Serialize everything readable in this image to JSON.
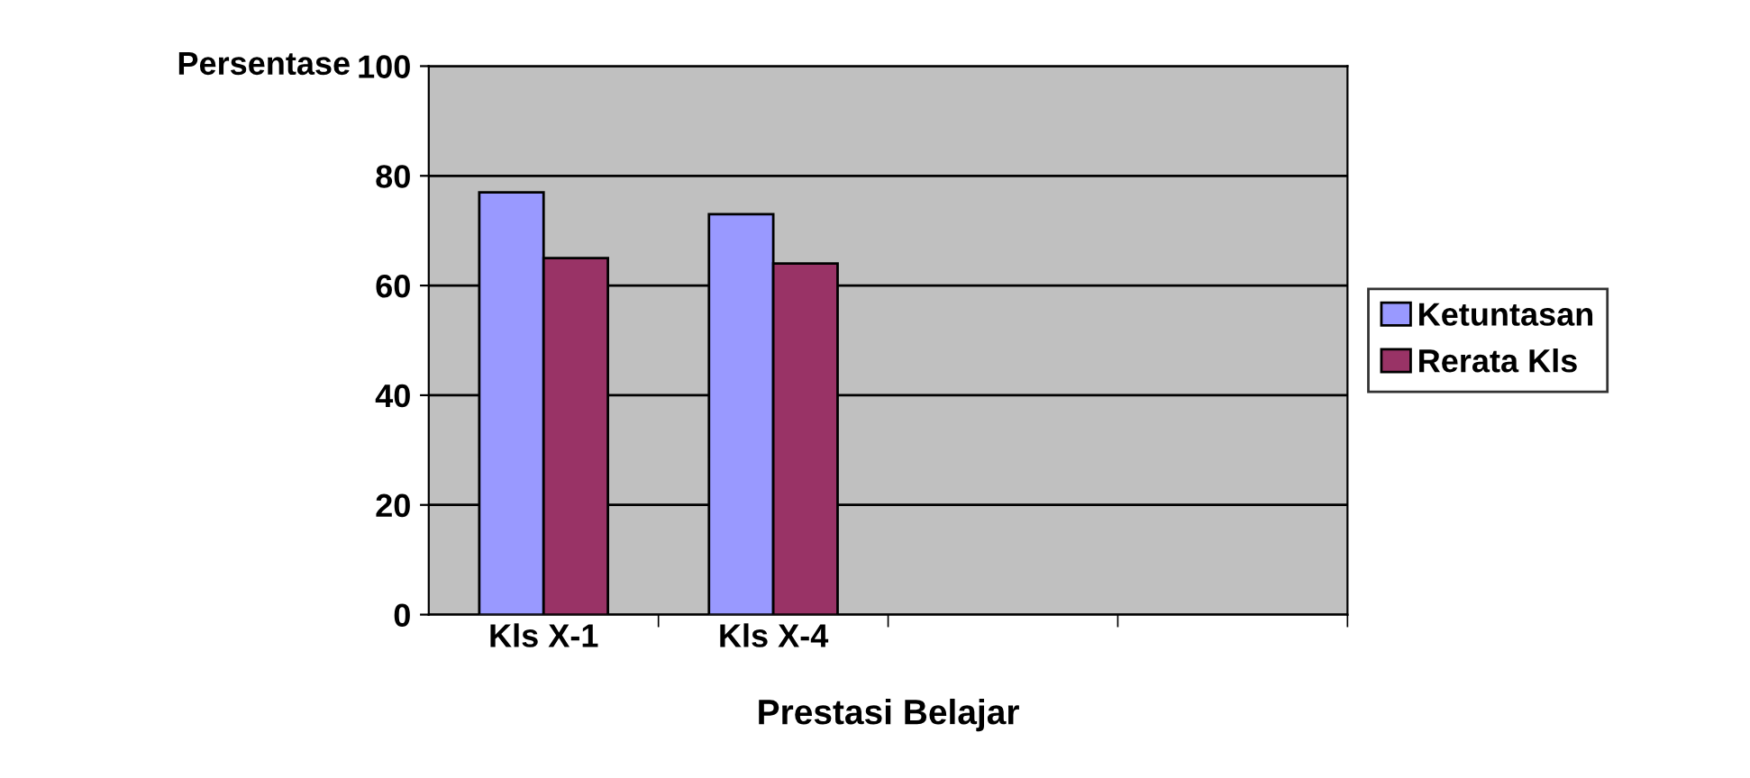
{
  "chart_data": {
    "type": "bar",
    "xlabel": "Prestasi Belajar",
    "ylabel": "Persentase",
    "categories": [
      "Kls X-1",
      "Kls X-4",
      null,
      null
    ],
    "series": [
      {
        "name": "Ketuntasan",
        "color": "#9999ff",
        "values": [
          77,
          73,
          null,
          null
        ]
      },
      {
        "name": "Rerata Kls",
        "color": "#993366",
        "values": [
          65,
          64,
          null,
          null
        ]
      }
    ],
    "ylim": [
      0,
      100
    ],
    "yticks": [
      0,
      20,
      40,
      60,
      80,
      100
    ],
    "grid": "y",
    "legend": "right"
  }
}
